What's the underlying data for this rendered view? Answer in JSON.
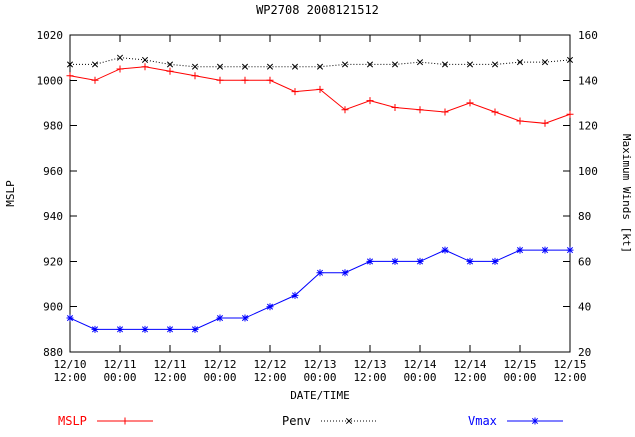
{
  "chart_data": {
    "type": "line",
    "title": "WP2708 2008121512",
    "xlabel": "DATE/TIME",
    "ylabel_left": "MSLP",
    "ylabel_right": "Maximum Winds [kt]",
    "ylim_left": [
      880,
      1020
    ],
    "ylim_right": [
      20,
      160
    ],
    "ytick_step": 20,
    "grid": false,
    "legend_position": "bottom",
    "x_hours": [
      0,
      6,
      12,
      18,
      24,
      30,
      36,
      42,
      48,
      54,
      60,
      66,
      72,
      78,
      84,
      90,
      96,
      102,
      108,
      114,
      120
    ],
    "xticks": [
      {
        "hour": 0,
        "label": [
          "12/10",
          "12:00"
        ]
      },
      {
        "hour": 12,
        "label": [
          "12/11",
          "00:00"
        ]
      },
      {
        "hour": 24,
        "label": [
          "12/11",
          "12:00"
        ]
      },
      {
        "hour": 36,
        "label": [
          "12/12",
          "00:00"
        ]
      },
      {
        "hour": 48,
        "label": [
          "12/12",
          "12:00"
        ]
      },
      {
        "hour": 60,
        "label": [
          "12/13",
          "00:00"
        ]
      },
      {
        "hour": 72,
        "label": [
          "12/13",
          "12:00"
        ]
      },
      {
        "hour": 84,
        "label": [
          "12/14",
          "00:00"
        ]
      },
      {
        "hour": 96,
        "label": [
          "12/14",
          "12:00"
        ]
      },
      {
        "hour": 108,
        "label": [
          "12/15",
          "00:00"
        ]
      },
      {
        "hour": 120,
        "label": [
          "12/15",
          "12:00"
        ]
      }
    ],
    "series": [
      {
        "name": "MSLP",
        "axis": "left",
        "color": "#ff0000",
        "marker": "plus",
        "dash": "solid",
        "values": [
          1002,
          1000,
          1005,
          1006,
          1004,
          1002,
          1000,
          1000,
          1000,
          995,
          996,
          987,
          991,
          988,
          987,
          986,
          990,
          986,
          982,
          981,
          985
        ]
      },
      {
        "name": "Penv",
        "axis": "left",
        "color": "#000000",
        "marker": "x",
        "dash": "dotted",
        "values": [
          1007,
          1007,
          1010,
          1009,
          1007,
          1006,
          1006,
          1006,
          1006,
          1006,
          1006,
          1007,
          1007,
          1007,
          1008,
          1007,
          1007,
          1007,
          1008,
          1008,
          1009
        ]
      },
      {
        "name": "Vmax",
        "axis": "right",
        "color": "#0000ff",
        "marker": "star",
        "dash": "solid",
        "values": [
          35,
          30,
          30,
          30,
          30,
          30,
          35,
          35,
          40,
          45,
          55,
          55,
          60,
          60,
          60,
          65,
          60,
          60,
          65,
          65,
          65
        ]
      }
    ]
  }
}
